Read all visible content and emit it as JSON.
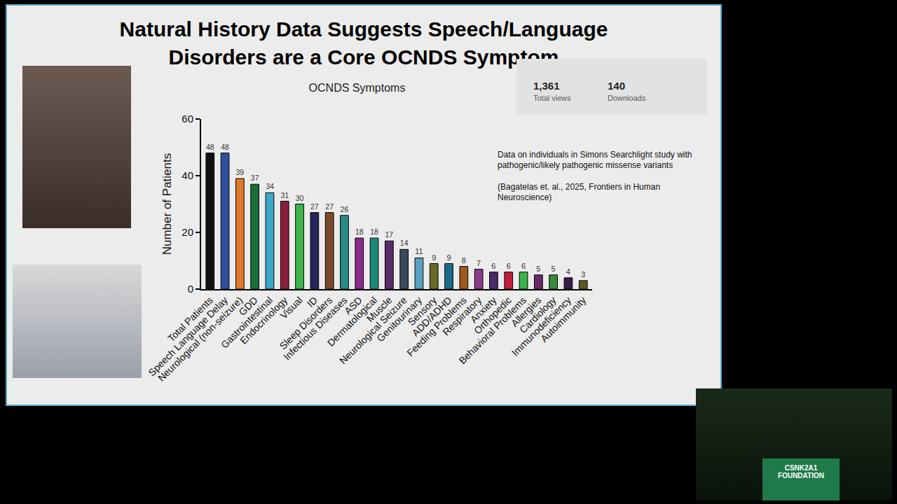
{
  "slide": {
    "title": "Natural History Data Suggests Speech/Language Disorders are a Core OCNDS Symptom",
    "stats": [
      {
        "value": "1,361",
        "label": "Total views"
      },
      {
        "value": "140",
        "label": "Downloads"
      }
    ],
    "notes": [
      "Data on individuals in Simons Searchlight study with pathogenic/likely pathogenic missense variants",
      "(Bagatelas et. al., 2025, Frontiers in Human Neuroscience)"
    ],
    "footer": "CSNK2A1 FOUNDATION"
  },
  "chart_data": {
    "type": "bar",
    "title": "OCNDS Symptoms",
    "y_label": "Number of Patients",
    "categories": [
      "Total Patients",
      "Speech Language Delay",
      "Neurological (non-seizure)",
      "GDD",
      "Gastrointestinal",
      "Endocrinology",
      "Visual",
      "ID",
      "Sleep Disorders",
      "Infectious Diseases",
      "ASD",
      "Dermatological",
      "Muscle",
      "Neurological Seizure",
      "Genitourinary",
      "Sensory",
      "ADD/ADHD",
      "Feeding Problems",
      "Respiratory",
      "Anxiety",
      "Orthopedic",
      "Behavioral Problems",
      "Allergies",
      "Cardiology",
      "Immunodeficiency",
      "Autoimmunity"
    ],
    "values": [
      48,
      48,
      39,
      37,
      34,
      31,
      30,
      27,
      27,
      26,
      18,
      18,
      17,
      14,
      11,
      9,
      9,
      8,
      7,
      6,
      6,
      6,
      5,
      5,
      4,
      3
    ],
    "colors": [
      "#111111",
      "#2f4f9f",
      "#e07a2a",
      "#1b6e3a",
      "#3aa8c8",
      "#8a1e3c",
      "#3cb44b",
      "#26265e",
      "#7a4a2a",
      "#2a8a88",
      "#8a2a8a",
      "#1a8a78",
      "#5a2a6a",
      "#3a4a5a",
      "#5aa0c0",
      "#6a6a2a",
      "#1a6a8a",
      "#a0581e",
      "#8a3a8a",
      "#4a2a6a",
      "#c0203a",
      "#3ab54a",
      "#6a2a6a",
      "#3a8a3a",
      "#3a1a4a",
      "#5a5a20"
    ],
    "ylim": [
      0,
      60
    ],
    "yticks": [
      0,
      20,
      40,
      60
    ],
    "grid": false,
    "data_labels": true
  }
}
